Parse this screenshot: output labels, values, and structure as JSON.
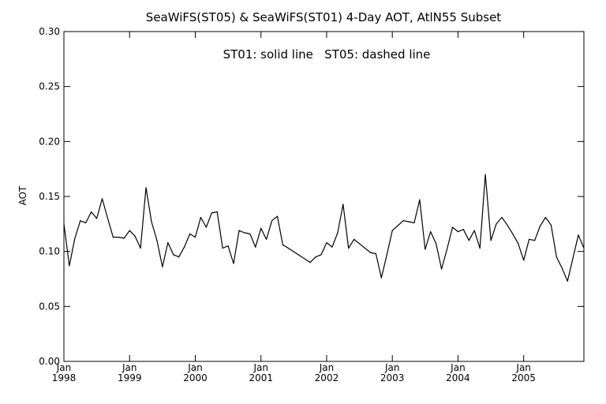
{
  "chart_data": {
    "type": "line",
    "title": "SeaWiFS(ST05) & SeaWiFS(ST01) 4-Day AOT, AtlN55 Subset",
    "annotation": "ST01: solid line   ST05: dashed line",
    "xlabel": "",
    "ylabel": "AOT",
    "ylim": [
      0.0,
      0.3
    ],
    "xlim": [
      1998.0,
      2005.917
    ],
    "yticks": [
      {
        "value": 0.0,
        "label": "0.00"
      },
      {
        "value": 0.05,
        "label": "0.05"
      },
      {
        "value": 0.1,
        "label": "0.10"
      },
      {
        "value": 0.15,
        "label": "0.15"
      },
      {
        "value": 0.2,
        "label": "0.20"
      },
      {
        "value": 0.25,
        "label": "0.25"
      },
      {
        "value": 0.3,
        "label": "0.30"
      }
    ],
    "xticks": [
      {
        "value": 1998,
        "month": "Jan",
        "year": "1998"
      },
      {
        "value": 1999,
        "month": "Jan",
        "year": "1999"
      },
      {
        "value": 2000,
        "month": "Jan",
        "year": "2000"
      },
      {
        "value": 2001,
        "month": "Jan",
        "year": "2001"
      },
      {
        "value": 2002,
        "month": "Jan",
        "year": "2002"
      },
      {
        "value": 2003,
        "month": "Jan",
        "year": "2003"
      },
      {
        "value": 2004,
        "month": "Jan",
        "year": "2004"
      },
      {
        "value": 2005,
        "month": "Jan",
        "year": "2005"
      }
    ],
    "grid": false,
    "series": [
      {
        "name": "ST01",
        "style": "solid",
        "color": "#000000",
        "x": [
          1998.0,
          1998.083,
          1998.167,
          1998.25,
          1998.333,
          1998.417,
          1998.5,
          1998.583,
          1998.667,
          1998.75,
          1998.833,
          1998.917,
          1999.0,
          1999.083,
          1999.167,
          1999.25,
          1999.333,
          1999.417,
          1999.5,
          1999.583,
          1999.667,
          1999.75,
          1999.833,
          1999.917,
          2000.0,
          2000.083,
          2000.167,
          2000.25,
          2000.333,
          2000.417,
          2000.5,
          2000.583,
          2000.667,
          2000.75,
          2000.833,
          2000.917,
          2001.0,
          2001.083,
          2001.167,
          2001.25,
          2001.333,
          2001.417,
          2001.75,
          2001.833,
          2001.917,
          2002.0,
          2002.083,
          2002.167,
          2002.25,
          2002.333,
          2002.417,
          2002.667,
          2002.75,
          2002.833,
          2002.917,
          2003.0,
          2003.167,
          2003.25,
          2003.333,
          2003.417,
          2003.5,
          2003.583,
          2003.667,
          2003.75,
          2003.833,
          2003.917,
          2004.0,
          2004.083,
          2004.167,
          2004.25,
          2004.333,
          2004.417,
          2004.5,
          2004.583,
          2004.667,
          2004.75,
          2004.833,
          2004.917,
          2005.0,
          2005.083,
          2005.167,
          2005.25,
          2005.333,
          2005.417,
          2005.5,
          2005.583,
          2005.667,
          2005.833,
          2005.917
        ],
        "values": [
          0.125,
          0.087,
          0.112,
          0.128,
          0.126,
          0.136,
          0.13,
          0.148,
          0.13,
          0.113,
          0.113,
          0.112,
          0.119,
          0.114,
          0.103,
          0.158,
          0.127,
          0.11,
          0.086,
          0.108,
          0.097,
          0.095,
          0.104,
          0.116,
          0.113,
          0.131,
          0.122,
          0.135,
          0.136,
          0.103,
          0.105,
          0.089,
          0.119,
          0.117,
          0.116,
          0.104,
          0.121,
          0.111,
          0.128,
          0.132,
          0.106,
          0.103,
          0.09,
          0.095,
          0.097,
          0.108,
          0.104,
          0.117,
          0.143,
          0.103,
          0.111,
          0.099,
          0.098,
          0.076,
          0.097,
          0.119,
          0.128,
          0.127,
          0.126,
          0.147,
          0.102,
          0.118,
          0.107,
          0.084,
          0.102,
          0.122,
          0.118,
          0.12,
          0.11,
          0.119,
          0.103,
          0.17,
          0.11,
          0.125,
          0.131,
          0.124,
          0.116,
          0.107,
          0.092,
          0.111,
          0.11,
          0.123,
          0.131,
          0.124,
          0.095,
          0.085,
          0.073,
          0.115,
          0.103
        ]
      }
    ]
  }
}
